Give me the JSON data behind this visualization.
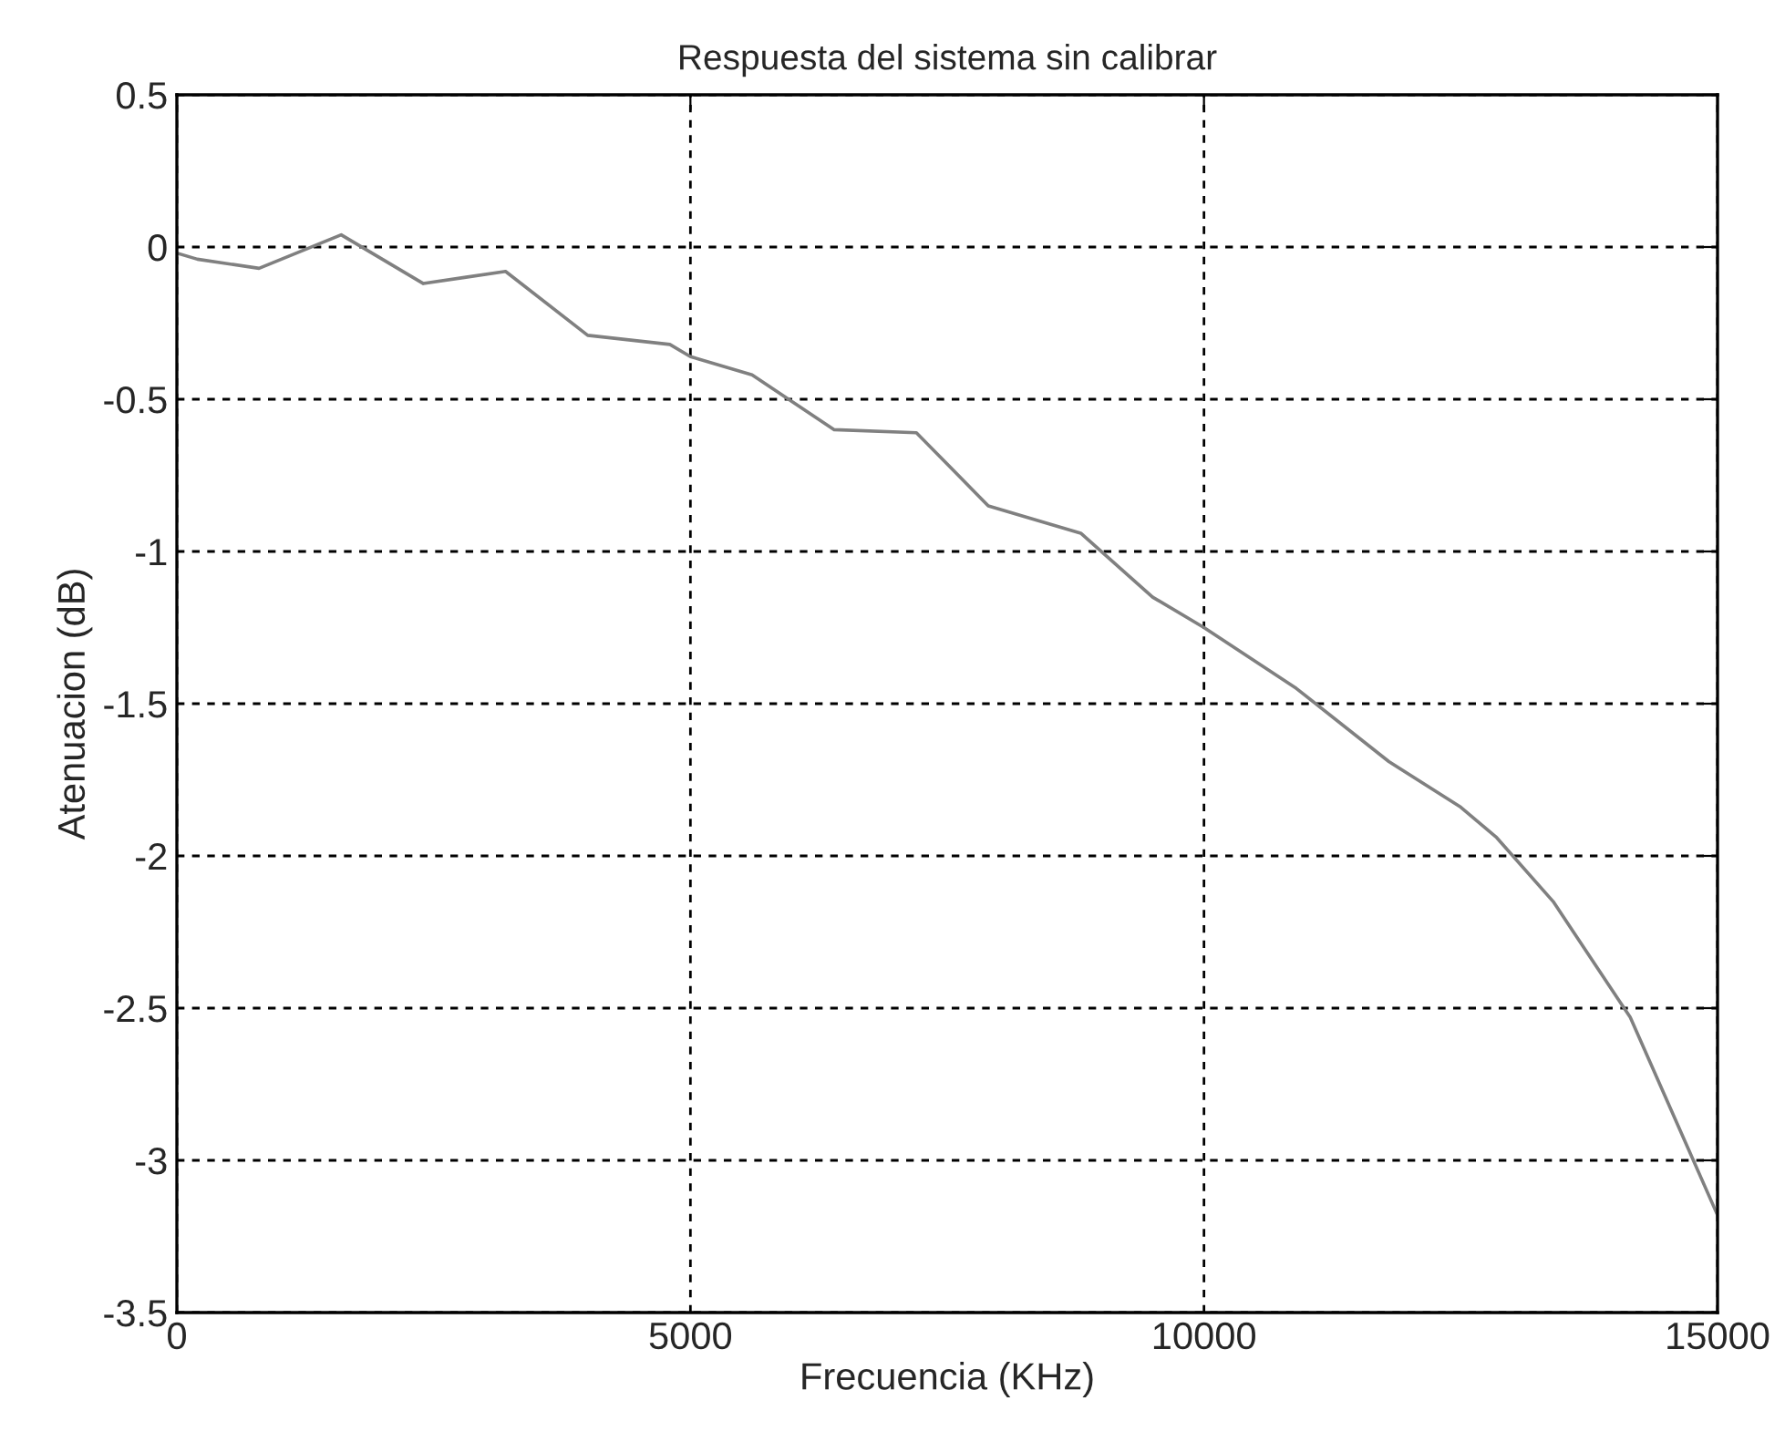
{
  "chart_data": {
    "type": "line",
    "title": "Respuesta del sistema sin calibrar",
    "xlabel": "Frecuencia (KHz)",
    "ylabel": "Atenuacion (dB)",
    "x": [
      0,
      200,
      800,
      1600,
      2400,
      2800,
      3200,
      4000,
      4800,
      5000,
      5600,
      6400,
      7200,
      7900,
      8800,
      9500,
      10000,
      10900,
      11800,
      12500,
      12850,
      13400,
      14150,
      15000
    ],
    "series": [
      {
        "color": "#808080",
        "values": [
          -0.02,
          -0.04,
          -0.07,
          0.04,
          -0.12,
          -0.1,
          -0.08,
          -0.29,
          -0.32,
          -0.36,
          -0.42,
          -0.6,
          -0.61,
          -0.85,
          -0.94,
          -1.15,
          -1.25,
          -1.45,
          -1.69,
          -1.84,
          -1.94,
          -2.15,
          -2.53,
          -3.18
        ]
      }
    ],
    "xlim": [
      0,
      15000
    ],
    "ylim": [
      -3.5,
      0.5
    ],
    "xticks": [
      0,
      5000,
      10000,
      15000
    ],
    "yticks": [
      -3.5,
      -3,
      -2.5,
      -2,
      -1.5,
      -1,
      -0.5,
      0,
      0.5
    ],
    "grid": true,
    "line_style": "solid",
    "marker": "none"
  }
}
